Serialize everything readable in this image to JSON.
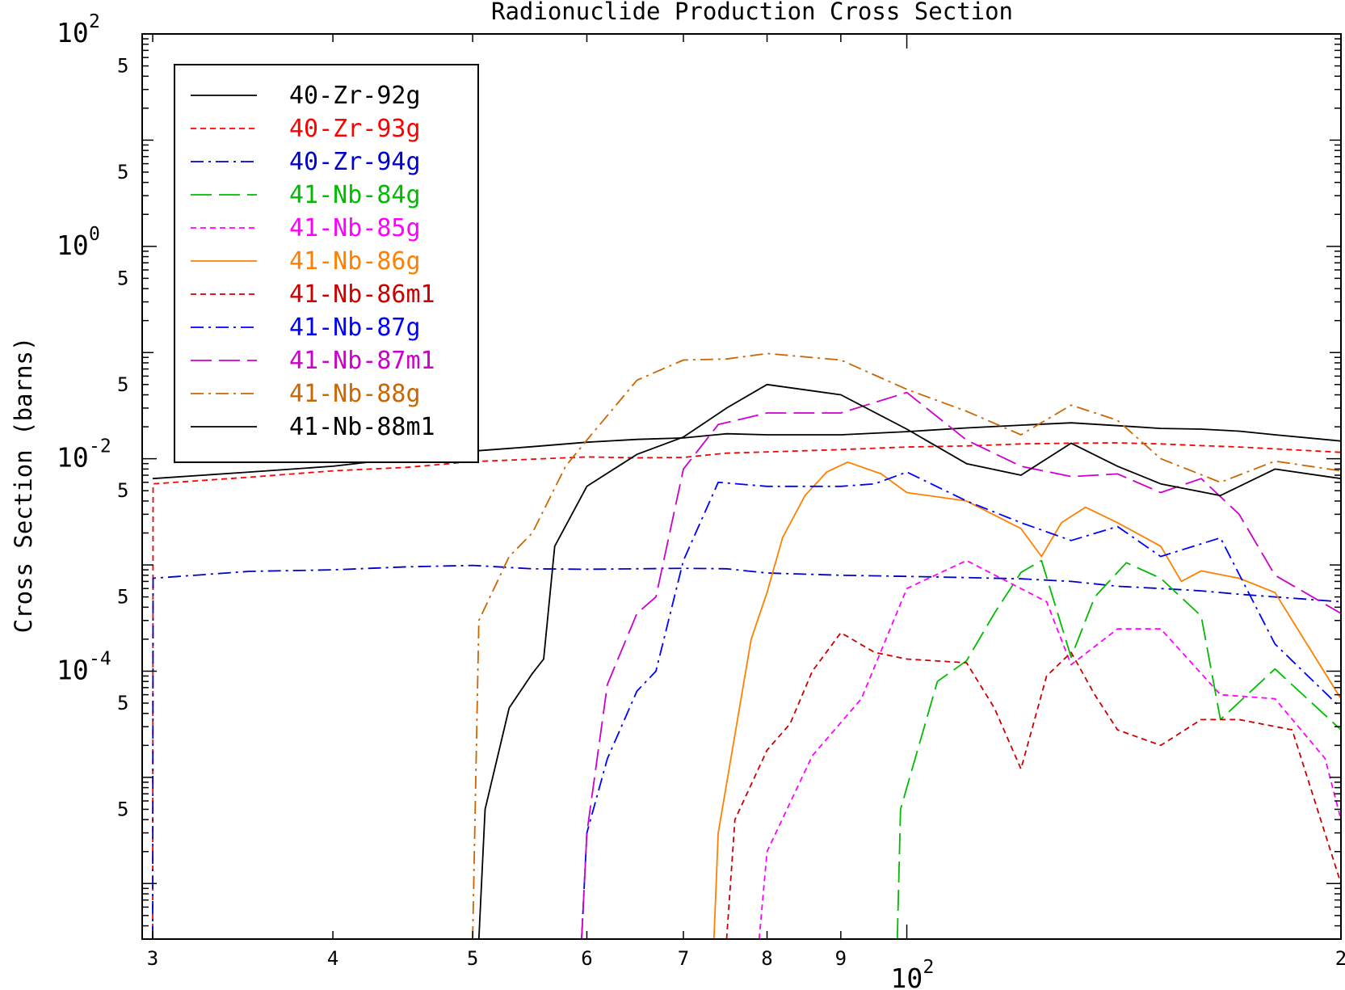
{
  "chart_data": {
    "type": "line",
    "title": "Radionuclide Production Cross Section",
    "xlabel": "",
    "ylabel": "Cross Section (barns)",
    "x_scale": "log",
    "y_scale": "log",
    "xlim": [
      29.5,
      200
    ],
    "ylim": [
      3e-07,
      100
    ],
    "x_ticks": [
      {
        "value": 30,
        "label": "3"
      },
      {
        "value": 40,
        "label": "4"
      },
      {
        "value": 50,
        "label": "5"
      },
      {
        "value": 60,
        "label": "6"
      },
      {
        "value": 70,
        "label": "7"
      },
      {
        "value": 80,
        "label": "8"
      },
      {
        "value": 90,
        "label": "9"
      },
      {
        "value": 200,
        "label": "2"
      }
    ],
    "x_major_label": {
      "value": 100,
      "base": "10",
      "exp": "2"
    },
    "y_major_labels": [
      {
        "value": 100,
        "base": "10",
        "exp": "2"
      },
      {
        "value": 1,
        "base": "10",
        "exp": "0"
      },
      {
        "value": 0.01,
        "base": "10",
        "exp": "-2"
      },
      {
        "value": 0.0001,
        "base": "10",
        "exp": "-4"
      }
    ],
    "y_minor_labels": [
      {
        "value": 50,
        "label": "5"
      },
      {
        "value": 5,
        "label": "5"
      },
      {
        "value": 0.5,
        "label": "5"
      },
      {
        "value": 0.05,
        "label": "5"
      },
      {
        "value": 0.005,
        "label": "5"
      },
      {
        "value": 0.0005,
        "label": "5"
      },
      {
        "value": 5e-05,
        "label": "5"
      },
      {
        "value": 5e-06,
        "label": "5"
      }
    ],
    "grid": false,
    "legend_position": "top-left",
    "series": [
      {
        "name": "40-Zr-92g",
        "color": "#000000",
        "dash": "solid",
        "points": [
          [
            30,
            0.0065
          ],
          [
            35,
            0.0075
          ],
          [
            40,
            0.0085
          ],
          [
            45,
            0.0102
          ],
          [
            50,
            0.0118
          ],
          [
            55,
            0.013
          ],
          [
            60,
            0.0143
          ],
          [
            65,
            0.0152
          ],
          [
            70,
            0.0157
          ],
          [
            75,
            0.0172
          ],
          [
            80,
            0.0168
          ],
          [
            90,
            0.0168
          ],
          [
            100,
            0.018
          ],
          [
            110,
            0.0195
          ],
          [
            120,
            0.0207
          ],
          [
            130,
            0.0218
          ],
          [
            140,
            0.0205
          ],
          [
            150,
            0.0193
          ],
          [
            160,
            0.019
          ],
          [
            170,
            0.0182
          ],
          [
            180,
            0.0168
          ],
          [
            200,
            0.0147
          ]
        ]
      },
      {
        "name": "40-Zr-93g",
        "color": "#ff0000",
        "dash": "short-dash",
        "points": [
          [
            30,
            3e-07
          ],
          [
            30.02,
            0.0058
          ],
          [
            35,
            0.0067
          ],
          [
            40,
            0.0077
          ],
          [
            45,
            0.0083
          ],
          [
            50,
            0.0094
          ],
          [
            55,
            0.0099
          ],
          [
            60,
            0.0104
          ],
          [
            65,
            0.0102
          ],
          [
            70,
            0.0103
          ],
          [
            75,
            0.0113
          ],
          [
            80,
            0.0116
          ],
          [
            90,
            0.0122
          ],
          [
            100,
            0.0129
          ],
          [
            110,
            0.0132
          ],
          [
            120,
            0.0138
          ],
          [
            130,
            0.014
          ],
          [
            140,
            0.0141
          ],
          [
            150,
            0.0138
          ],
          [
            160,
            0.0133
          ],
          [
            170,
            0.0129
          ],
          [
            180,
            0.0124
          ],
          [
            200,
            0.0115
          ]
        ]
      },
      {
        "name": "40-Zr-94g",
        "color": "#0000cc",
        "dash": "dash-dot",
        "points": [
          [
            30,
            3e-07
          ],
          [
            30.02,
            0.00075
          ],
          [
            35,
            0.00087
          ],
          [
            40,
            0.0009
          ],
          [
            45,
            0.00096
          ],
          [
            50,
            0.00099
          ],
          [
            55,
            0.00092
          ],
          [
            60,
            0.00091
          ],
          [
            65,
            0.00092
          ],
          [
            70,
            0.00093
          ],
          [
            75,
            0.00092
          ],
          [
            80,
            0.00084
          ],
          [
            90,
            0.0008
          ],
          [
            100,
            0.00078
          ],
          [
            110,
            0.00076
          ],
          [
            120,
            0.00074
          ],
          [
            130,
            0.0007
          ],
          [
            140,
            0.00063
          ],
          [
            150,
            0.0006
          ],
          [
            160,
            0.00057
          ],
          [
            170,
            0.00053
          ],
          [
            180,
            0.0005
          ],
          [
            200,
            0.00045
          ]
        ]
      },
      {
        "name": "41-Nb-84g",
        "color": "#00bb00",
        "dash": "long-dash",
        "points": [
          [
            98.5,
            3e-07
          ],
          [
            99,
            5e-06
          ],
          [
            105,
            8e-05
          ],
          [
            110,
            0.000125
          ],
          [
            115,
            0.00035
          ],
          [
            120,
            0.00085
          ],
          [
            124,
            0.0011
          ],
          [
            130,
            0.000135
          ],
          [
            135,
            0.0005
          ],
          [
            142,
            0.00105
          ],
          [
            150,
            0.00075
          ],
          [
            160,
            0.00033
          ],
          [
            165,
            3.5e-05
          ],
          [
            180,
            0.000105
          ],
          [
            200,
            2.8e-05
          ]
        ]
      },
      {
        "name": "41-Nb-85g",
        "color": "#ff00ff",
        "dash": "short-dash",
        "points": [
          [
            79,
            3e-07
          ],
          [
            80,
            2e-06
          ],
          [
            86,
            1.6e-05
          ],
          [
            93,
            5.5e-05
          ],
          [
            100,
            0.0006
          ],
          [
            110,
            0.0011
          ],
          [
            125,
            0.00045
          ],
          [
            130,
            0.000115
          ],
          [
            140,
            0.00025
          ],
          [
            150,
            0.00025
          ],
          [
            165,
            6e-05
          ],
          [
            180,
            5.5e-05
          ],
          [
            195,
            1.5e-05
          ],
          [
            200,
            4e-06
          ]
        ]
      },
      {
        "name": "41-Nb-86g",
        "color": "#ff8000",
        "dash": "solid",
        "points": [
          [
            73.5,
            3e-07
          ],
          [
            74,
            3e-06
          ],
          [
            78,
            0.0002
          ],
          [
            80,
            0.00055
          ],
          [
            82,
            0.0018
          ],
          [
            85,
            0.0045
          ],
          [
            88,
            0.0075
          ],
          [
            91,
            0.0093
          ],
          [
            96,
            0.0072
          ],
          [
            100,
            0.0048
          ],
          [
            110,
            0.004
          ],
          [
            120,
            0.0022
          ],
          [
            124,
            0.0012
          ],
          [
            128,
            0.0025
          ],
          [
            133,
            0.0035
          ],
          [
            140,
            0.0025
          ],
          [
            150,
            0.0015
          ],
          [
            155,
            0.0007
          ],
          [
            160,
            0.00088
          ],
          [
            170,
            0.00075
          ],
          [
            180,
            0.00055
          ],
          [
            200,
            5.5e-05
          ]
        ]
      },
      {
        "name": "41-Nb-86m1",
        "color": "#cc0000",
        "dash": "short-dash",
        "points": [
          [
            75,
            3e-07
          ],
          [
            76,
            4e-06
          ],
          [
            80,
            1.8e-05
          ],
          [
            83,
            3.2e-05
          ],
          [
            86,
            0.0001
          ],
          [
            90,
            0.00023
          ],
          [
            95,
            0.00015
          ],
          [
            100,
            0.00013
          ],
          [
            110,
            0.00012
          ],
          [
            115,
            4.5e-05
          ],
          [
            120,
            1.2e-05
          ],
          [
            125,
            9e-05
          ],
          [
            130,
            0.00015
          ],
          [
            135,
            6e-05
          ],
          [
            140,
            2.8e-05
          ],
          [
            150,
            2e-05
          ],
          [
            160,
            3.5e-05
          ],
          [
            170,
            3.5e-05
          ],
          [
            185,
            2.8e-05
          ],
          [
            200,
            1e-06
          ]
        ]
      },
      {
        "name": "41-Nb-87g",
        "color": "#0000ff",
        "dash": "dash-dot",
        "points": [
          [
            59.5,
            3e-07
          ],
          [
            60,
            3e-06
          ],
          [
            62,
            1.5e-05
          ],
          [
            65,
            6.5e-05
          ],
          [
            67,
            0.0001
          ],
          [
            70,
            0.0011
          ],
          [
            74,
            0.006
          ],
          [
            80,
            0.0055
          ],
          [
            90,
            0.0055
          ],
          [
            95,
            0.0058
          ],
          [
            100,
            0.0075
          ],
          [
            110,
            0.004
          ],
          [
            120,
            0.0025
          ],
          [
            130,
            0.0017
          ],
          [
            140,
            0.0023
          ],
          [
            150,
            0.0012
          ],
          [
            165,
            0.0018
          ],
          [
            180,
            0.00018
          ],
          [
            200,
            4.5e-05
          ]
        ]
      },
      {
        "name": "41-Nb-87m1",
        "color": "#cc00cc",
        "dash": "long-dash",
        "points": [
          [
            59.5,
            3e-07
          ],
          [
            60,
            3e-06
          ],
          [
            62,
            7.5e-05
          ],
          [
            65,
            0.00035
          ],
          [
            67,
            0.0005
          ],
          [
            70,
            0.008
          ],
          [
            74,
            0.021
          ],
          [
            80,
            0.027
          ],
          [
            90,
            0.027
          ],
          [
            100,
            0.042
          ],
          [
            110,
            0.015
          ],
          [
            120,
            0.0085
          ],
          [
            130,
            0.0068
          ],
          [
            140,
            0.0072
          ],
          [
            150,
            0.0048
          ],
          [
            160,
            0.0065
          ],
          [
            170,
            0.003
          ],
          [
            180,
            0.0008
          ],
          [
            200,
            0.00035
          ]
        ]
      },
      {
        "name": "41-Nb-88g",
        "color": "#cc6600",
        "dash": "dash-dot",
        "points": [
          [
            50,
            3e-07
          ],
          [
            50.5,
            0.0003
          ],
          [
            53,
            0.0012
          ],
          [
            55,
            0.002
          ],
          [
            58,
            0.0085
          ],
          [
            60,
            0.015
          ],
          [
            65,
            0.055
          ],
          [
            70,
            0.085
          ],
          [
            75,
            0.087
          ],
          [
            80,
            0.098
          ],
          [
            90,
            0.085
          ],
          [
            100,
            0.045
          ],
          [
            110,
            0.028
          ],
          [
            120,
            0.0168
          ],
          [
            130,
            0.032
          ],
          [
            140,
            0.023
          ],
          [
            150,
            0.01
          ],
          [
            165,
            0.006
          ],
          [
            180,
            0.0095
          ],
          [
            200,
            0.0077
          ]
        ]
      },
      {
        "name": "41-Nb-88m1",
        "color": "#000000",
        "dash": "solid",
        "points": [
          [
            50.5,
            3e-07
          ],
          [
            51,
            5e-06
          ],
          [
            53,
            4.5e-05
          ],
          [
            55,
            9.5e-05
          ],
          [
            56,
            0.00013
          ],
          [
            57,
            0.0015
          ],
          [
            60,
            0.0055
          ],
          [
            65,
            0.011
          ],
          [
            70,
            0.016
          ],
          [
            75,
            0.03
          ],
          [
            80,
            0.05
          ],
          [
            90,
            0.04
          ],
          [
            100,
            0.019
          ],
          [
            110,
            0.009
          ],
          [
            120,
            0.007
          ],
          [
            130,
            0.014
          ],
          [
            140,
            0.0085
          ],
          [
            150,
            0.0058
          ],
          [
            165,
            0.0045
          ],
          [
            180,
            0.008
          ],
          [
            200,
            0.0065
          ]
        ]
      }
    ]
  }
}
